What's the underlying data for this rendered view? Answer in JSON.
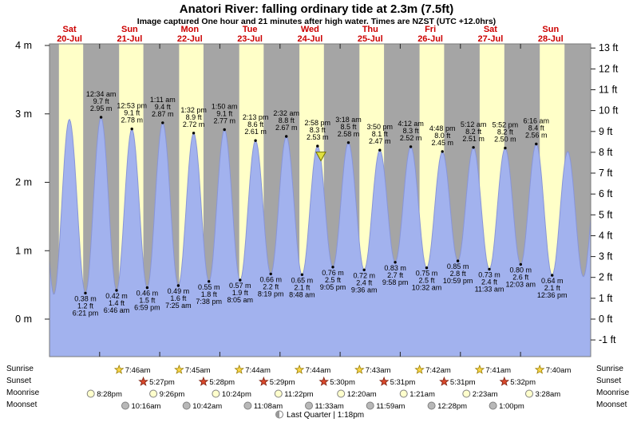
{
  "title": "Anatori River: falling  ordinary tide at 2.3m (7.5ft)",
  "subtitle": "Image captured One hour and 21 minutes after high water. Times are NZST (UTC +12.0hrs)",
  "colors": {
    "plot_bg": "#a5a5a5",
    "daylight_band": "#ffffc8",
    "tide_fill": "#a2b2ee",
    "tide_edge": "#8895d8",
    "day_label": "#cc0000",
    "text": "#000000",
    "marker_fill": "#e0e040",
    "marker_stroke": "#707000",
    "sunrise_star": "#f8d548",
    "sunrise_star_stroke": "#9a7d00",
    "sunset_star": "#d9482b",
    "sunset_star_stroke": "#7a2010",
    "moonrise_circle": "#ffffcc",
    "moonset_circle": "#b8b8b8"
  },
  "chart_data": {
    "type": "area",
    "title": "Anatori River: falling ordinary tide at 2.3m (7.5ft)",
    "ylabel_left": "m",
    "ylabel_right": "ft",
    "ylim_m": [
      -0.55,
      4.02
    ],
    "yticks_m": [
      "4 m",
      "3 m",
      "2 m",
      "1 m",
      "0 m"
    ],
    "yticks_ft": [
      "13 ft",
      "12 ft",
      "11 ft",
      "10 ft",
      "9 ft",
      "8 ft",
      "7 ft",
      "6 ft",
      "5 ft",
      "4 ft",
      "3 ft",
      "2 ft",
      "1 ft",
      "0 ft",
      "-1 ft"
    ],
    "axis_start_hour": 4,
    "axis_span_hours": 216,
    "days": [
      {
        "day": "Sat",
        "date": "20-Jul"
      },
      {
        "day": "Sun",
        "date": "21-Jul"
      },
      {
        "day": "Mon",
        "date": "22-Jul"
      },
      {
        "day": "Tue",
        "date": "23-Jul"
      },
      {
        "day": "Wed",
        "date": "24-Jul"
      },
      {
        "day": "Thu",
        "date": "25-Jul"
      },
      {
        "day": "Fri",
        "date": "26-Jul"
      },
      {
        "day": "Sat",
        "date": "27-Jul"
      },
      {
        "day": "Sun",
        "date": "28-Jul"
      }
    ],
    "daylight": [
      {
        "day": 0,
        "from": "7:46am",
        "to": "5:27pm"
      },
      {
        "day": 1,
        "from": "7:46am",
        "to": "5:27pm"
      },
      {
        "day": 2,
        "from": "7:45am",
        "to": "5:28pm"
      },
      {
        "day": 3,
        "from": "7:44am",
        "to": "5:29pm"
      },
      {
        "day": 4,
        "from": "7:44am",
        "to": "5:30pm"
      },
      {
        "day": 5,
        "from": "7:43am",
        "to": "5:31pm"
      },
      {
        "day": 6,
        "from": "7:42am",
        "to": "5:31pm"
      },
      {
        "day": 7,
        "from": "7:41am",
        "to": "5:32pm"
      },
      {
        "day": 8,
        "from": "7:40am",
        "to": "5:33pm"
      }
    ],
    "high_tides": [
      {
        "day": 1,
        "time": "12:34 am",
        "ft": "9.7 ft",
        "m": "2.95 m"
      },
      {
        "day": 1,
        "time": "12:53 pm",
        "ft": "9.1 ft",
        "m": "2.78 m"
      },
      {
        "day": 2,
        "time": "1:11 am",
        "ft": "9.4 ft",
        "m": "2.87 m"
      },
      {
        "day": 2,
        "time": "1:32 pm",
        "ft": "8.9 ft",
        "m": "2.72 m"
      },
      {
        "day": 3,
        "time": "1:50 am",
        "ft": "9.1 ft",
        "m": "2.77 m"
      },
      {
        "day": 3,
        "time": "2:13 pm",
        "ft": "8.6 ft",
        "m": "2.61 m"
      },
      {
        "day": 4,
        "time": "2:32 am",
        "ft": "8.8 ft",
        "m": "2.67 m"
      },
      {
        "day": 4,
        "time": "2:58 pm",
        "ft": "8.3 ft",
        "m": "2.53 m"
      },
      {
        "day": 5,
        "time": "3:18 am",
        "ft": "8.5 ft",
        "m": "2.58 m"
      },
      {
        "day": 5,
        "time": "3:50 pm",
        "ft": "8.1 ft",
        "m": "2.47 m"
      },
      {
        "day": 6,
        "time": "4:12 am",
        "ft": "8.3 ft",
        "m": "2.52 m"
      },
      {
        "day": 6,
        "time": "4:48 pm",
        "ft": "8.0 ft",
        "m": "2.45 m"
      },
      {
        "day": 7,
        "time": "5:12 am",
        "ft": "8.2 ft",
        "m": "2.51 m"
      },
      {
        "day": 7,
        "time": "5:52 pm",
        "ft": "8.2 ft",
        "m": "2.50 m"
      },
      {
        "day": 8,
        "time": "6:16 am",
        "ft": "8.4 ft",
        "m": "2.56 m"
      }
    ],
    "low_tides": [
      {
        "day": 0,
        "m": "0.38 m",
        "ft": "1.2 ft",
        "time": "6:21 pm"
      },
      {
        "day": 1,
        "m": "0.42 m",
        "ft": "1.4 ft",
        "time": "6:46 am"
      },
      {
        "day": 1,
        "m": "0.46 m",
        "ft": "1.5 ft",
        "time": "6:59 pm"
      },
      {
        "day": 2,
        "m": "0.49 m",
        "ft": "1.6 ft",
        "time": "7:25 am"
      },
      {
        "day": 2,
        "m": "0.55 m",
        "ft": "1.8 ft",
        "time": "7:38 pm"
      },
      {
        "day": 3,
        "m": "0.57 m",
        "ft": "1.9 ft",
        "time": "8:05 am"
      },
      {
        "day": 3,
        "m": "0.66 m",
        "ft": "2.2 ft",
        "time": "8:19 pm"
      },
      {
        "day": 4,
        "m": "0.65 m",
        "ft": "2.1 ft",
        "time": "8:48 am"
      },
      {
        "day": 4,
        "m": "0.76 m",
        "ft": "2.5 ft",
        "time": "9:05 pm"
      },
      {
        "day": 5,
        "m": "0.72 m",
        "ft": "2.4 ft",
        "time": "9:36 am"
      },
      {
        "day": 5,
        "m": "0.83 m",
        "ft": "2.7 ft",
        "time": "9:58 pm"
      },
      {
        "day": 6,
        "m": "0.75 m",
        "ft": "2.5 ft",
        "time": "10:32 am"
      },
      {
        "day": 6,
        "m": "0.85 m",
        "ft": "2.8 ft",
        "time": "10:59 pm"
      },
      {
        "day": 7,
        "m": "0.73 m",
        "ft": "2.4 ft",
        "time": "11:33 am"
      },
      {
        "day": 8,
        "m": "0.80 m",
        "ft": "2.6 ft",
        "time": "12:03 am"
      },
      {
        "day": 8,
        "m": "0.64 m",
        "ft": "2.1 ft",
        "time": "12:36 pm"
      }
    ],
    "unlabeled_extremes": [
      {
        "day": -1,
        "time": "11:40 pm",
        "m_est": 2.95
      },
      {
        "day": 0,
        "time": "5:45 am",
        "m_est": 0.36
      },
      {
        "day": 0,
        "time": "11:55 am",
        "m_est": 2.92
      },
      {
        "day": 8,
        "time": "6:50 pm",
        "m_est": 2.45
      },
      {
        "day": 9,
        "time": "1:05 am",
        "m_est": 0.62
      },
      {
        "day": 9,
        "time": "7:20 am",
        "m_est": 2.5
      }
    ],
    "marker": {
      "day": 4,
      "time": "4:19 pm"
    }
  },
  "astro": {
    "rows": [
      {
        "label": "Sunrise",
        "icon": "sunrise-star",
        "events": [
          {
            "day": 1,
            "time": "7:46am"
          },
          {
            "day": 2,
            "time": "7:45am"
          },
          {
            "day": 3,
            "time": "7:44am"
          },
          {
            "day": 4,
            "time": "7:44am"
          },
          {
            "day": 5,
            "time": "7:43am"
          },
          {
            "day": 6,
            "time": "7:42am"
          },
          {
            "day": 7,
            "time": "7:41am"
          },
          {
            "day": 8,
            "time": "7:40am"
          }
        ]
      },
      {
        "label": "Sunset",
        "icon": "sunset-star",
        "events": [
          {
            "day": 1,
            "time": "5:27pm"
          },
          {
            "day": 2,
            "time": "5:28pm"
          },
          {
            "day": 3,
            "time": "5:29pm"
          },
          {
            "day": 4,
            "time": "5:30pm"
          },
          {
            "day": 5,
            "time": "5:31pm"
          },
          {
            "day": 6,
            "time": "5:31pm"
          },
          {
            "day": 7,
            "time": "5:32pm"
          }
        ]
      },
      {
        "label": "Moonrise",
        "icon": "moon-light",
        "events": [
          {
            "day": 0,
            "time": "8:28pm"
          },
          {
            "day": 1,
            "time": "9:26pm"
          },
          {
            "day": 2,
            "time": "10:24pm"
          },
          {
            "day": 3,
            "time": "11:22pm"
          },
          {
            "day": 5,
            "time": "12:20am"
          },
          {
            "day": 6,
            "time": "1:21am"
          },
          {
            "day": 7,
            "time": "2:23am"
          },
          {
            "day": 8,
            "time": "3:28am"
          }
        ]
      },
      {
        "label": "Moonset",
        "icon": "moon-dark",
        "events": [
          {
            "day": 1,
            "time": "10:16am"
          },
          {
            "day": 2,
            "time": "10:42am"
          },
          {
            "day": 3,
            "time": "11:08am"
          },
          {
            "day": 4,
            "time": "11:33am"
          },
          {
            "day": 5,
            "time": "11:59am"
          },
          {
            "day": 6,
            "time": "12:28pm"
          },
          {
            "day": 7,
            "time": "1:00pm"
          }
        ]
      }
    ],
    "note": {
      "icon": "last-quarter-moon",
      "text": "Last Quarter | 1:18pm"
    }
  }
}
